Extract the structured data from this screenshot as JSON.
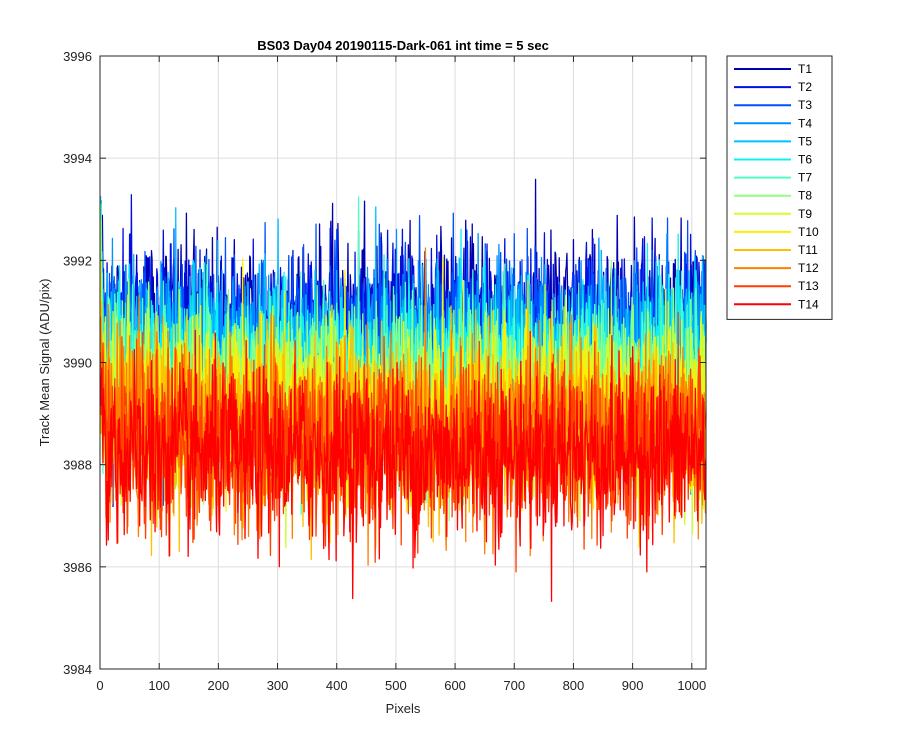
{
  "chart_data": {
    "type": "line",
    "title": "BS03 Day04 20190115-Dark-061 int time = 5 sec",
    "xlabel": "Pixels",
    "ylabel": "Track Mean Signal (ADU/pix)",
    "xlim": [
      0,
      1024
    ],
    "ylim": [
      3984,
      3996
    ],
    "xticks": [
      0,
      100,
      200,
      300,
      400,
      500,
      600,
      700,
      800,
      900,
      1000
    ],
    "yticks": [
      3984,
      3986,
      3988,
      3990,
      3992,
      3994,
      3996
    ],
    "grid": true,
    "legend_position": "outside-top-right",
    "n_points": 1024,
    "series": [
      {
        "name": "T1",
        "color": "#0000b0",
        "mean": 3990.8,
        "spread": 0.85
      },
      {
        "name": "T2",
        "color": "#0010e0",
        "mean": 3990.6,
        "spread": 0.85
      },
      {
        "name": "T3",
        "color": "#0050ff",
        "mean": 3990.4,
        "spread": 0.85
      },
      {
        "name": "T4",
        "color": "#0090ff",
        "mean": 3990.2,
        "spread": 0.85
      },
      {
        "name": "T5",
        "color": "#00c0ff",
        "mean": 3990.0,
        "spread": 0.85
      },
      {
        "name": "T6",
        "color": "#10f0f0",
        "mean": 3989.8,
        "spread": 0.85
      },
      {
        "name": "T7",
        "color": "#50ffc0",
        "mean": 3989.6,
        "spread": 0.85
      },
      {
        "name": "T8",
        "color": "#90ff80",
        "mean": 3989.4,
        "spread": 0.85
      },
      {
        "name": "T9",
        "color": "#d0ff30",
        "mean": 3989.2,
        "spread": 0.85
      },
      {
        "name": "T10",
        "color": "#ffee00",
        "mean": 3989.0,
        "spread": 0.85
      },
      {
        "name": "T11",
        "color": "#ffc000",
        "mean": 3988.8,
        "spread": 0.85
      },
      {
        "name": "T12",
        "color": "#ff8000",
        "mean": 3988.6,
        "spread": 0.85
      },
      {
        "name": "T13",
        "color": "#ff4000",
        "mean": 3988.4,
        "spread": 0.85
      },
      {
        "name": "T14",
        "color": "#ff0000",
        "mean": 3988.2,
        "spread": 0.85
      }
    ]
  }
}
